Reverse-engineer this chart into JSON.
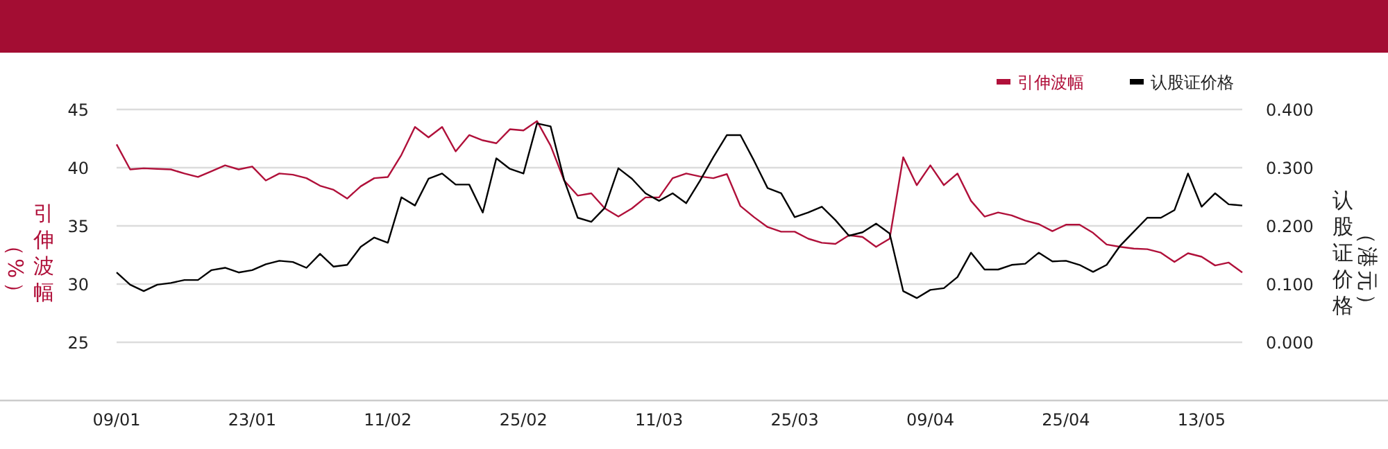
{
  "chart_data": {
    "type": "line",
    "ylabel": "引伸波幅（%）",
    "y2label": "认股证价格（港元）",
    "categories": [
      "09/01",
      null,
      null,
      null,
      null,
      null,
      null,
      null,
      null,
      null,
      "23/01",
      null,
      null,
      null,
      null,
      null,
      null,
      null,
      null,
      null,
      "11/02",
      null,
      null,
      null,
      null,
      null,
      null,
      null,
      null,
      null,
      "25/02",
      null,
      null,
      null,
      null,
      null,
      null,
      null,
      null,
      null,
      "11/03",
      null,
      null,
      null,
      null,
      null,
      null,
      null,
      null,
      null,
      "25/03",
      null,
      null,
      null,
      null,
      null,
      null,
      null,
      null,
      null,
      "09/04",
      null,
      null,
      null,
      null,
      null,
      null,
      null,
      null,
      null,
      "25/04",
      null,
      null,
      null,
      null,
      null,
      null,
      null,
      null,
      null,
      "13/05",
      null,
      null,
      null
    ],
    "series": [
      {
        "name": "引伸波幅",
        "color": "#b0103a",
        "values": [
          42.0,
          39.85,
          39.95,
          39.9,
          39.85,
          39.5,
          39.2,
          39.7,
          40.2,
          39.85,
          40.1,
          38.9,
          39.5,
          39.4,
          39.1,
          38.45,
          38.1,
          37.35,
          38.4,
          39.1,
          39.2,
          41.1,
          43.5,
          42.6,
          43.5,
          41.4,
          42.8,
          42.35,
          42.1,
          43.3,
          43.2,
          44.0,
          41.9,
          38.9,
          37.6,
          37.8,
          36.5,
          35.8,
          36.5,
          37.45,
          37.45,
          39.1,
          39.5,
          39.25,
          39.1,
          39.45,
          36.7,
          35.75,
          34.9,
          34.5,
          34.5,
          33.9,
          33.55,
          33.45,
          34.2,
          34.05,
          33.2,
          33.9,
          40.9,
          38.5,
          40.2,
          38.5,
          39.5,
          37.15,
          35.8,
          36.15,
          35.9,
          35.45,
          35.15,
          34.55,
          35.1,
          35.1,
          34.4,
          33.4,
          33.2,
          33.05,
          33.0,
          32.7,
          31.9,
          32.65,
          32.35,
          31.6,
          31.85,
          31.0
        ]
      },
      {
        "name": "认股证价格",
        "color": "#000000",
        "axis": "y2",
        "values": [
          0.12,
          0.099,
          0.088,
          0.099,
          0.102,
          0.107,
          0.107,
          0.124,
          0.128,
          0.12,
          0.124,
          0.134,
          0.14,
          0.138,
          0.128,
          0.152,
          0.13,
          0.133,
          0.164,
          0.18,
          0.171,
          0.249,
          0.235,
          0.281,
          0.29,
          0.271,
          0.271,
          0.223,
          0.316,
          0.298,
          0.29,
          0.376,
          0.371,
          0.279,
          0.214,
          0.207,
          0.231,
          0.299,
          0.281,
          0.256,
          0.243,
          0.256,
          0.239,
          0.277,
          0.318,
          0.356,
          0.356,
          0.312,
          0.265,
          0.256,
          0.215,
          0.223,
          0.233,
          0.21,
          0.183,
          0.189,
          0.204,
          0.187,
          0.088,
          0.076,
          0.09,
          0.093,
          0.112,
          0.154,
          0.125,
          0.125,
          0.133,
          0.135,
          0.154,
          0.139,
          0.14,
          0.133,
          0.121,
          0.133,
          0.166,
          0.19,
          0.214,
          0.214,
          0.227,
          0.29,
          0.233,
          0.256,
          0.237,
          0.235
        ]
      }
    ],
    "ylim": [
      20,
      45
    ],
    "yticks": [
      25,
      30,
      35,
      40,
      45
    ],
    "y2lim": [
      -0.1,
      0.4
    ],
    "y2ticks": [
      {
        "value": 0,
        "label": "0.000"
      },
      {
        "value": 0.1,
        "label": "0.100"
      },
      {
        "value": 0.2,
        "label": "0.200"
      },
      {
        "value": 0.3,
        "label": "0.300"
      },
      {
        "value": 0.4,
        "label": "0.400"
      }
    ],
    "grid": "y",
    "legend": "top right",
    "marker": "none",
    "line_style": "solid"
  }
}
